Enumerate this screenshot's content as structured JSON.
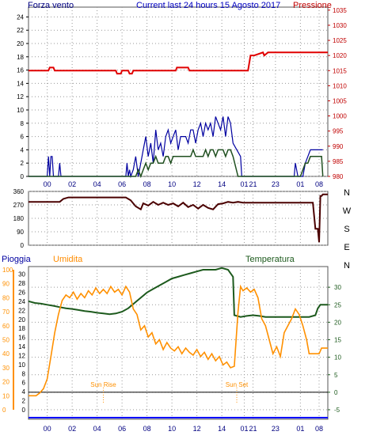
{
  "header": {
    "left": "Forza vento",
    "title": "Current last 24 hours 15 Agosto 2017",
    "right": "Pressione"
  },
  "colors": {
    "wind": "#0000a0",
    "gust": "#1f4f1f",
    "pressure": "#e00000",
    "direction": "#4a0000",
    "humidity": "#ff9000",
    "temperature": "#1d5a1d",
    "rain": "#0000ff",
    "rain_scale": "#ff9000",
    "axis_left": "#000000"
  },
  "time_ticks": [
    "00",
    "02",
    "04",
    "06",
    "08",
    "10",
    "12",
    "14",
    "01",
    "21",
    "23",
    "01",
    "08"
  ],
  "chart_data": [
    {
      "id": "wind-pressure",
      "type": "line",
      "left_axis": {
        "label": "Forza vento",
        "ticks": [
          0,
          2,
          4,
          6,
          8,
          10,
          12,
          14,
          16,
          18,
          20,
          22,
          24
        ],
        "range": [
          0,
          25
        ]
      },
      "right_axis": {
        "label": "Pressione",
        "ticks": [
          980,
          985,
          990,
          995,
          1000,
          1005,
          1010,
          1015,
          1020,
          1025,
          1030,
          1035
        ],
        "range": [
          980,
          1036
        ]
      },
      "series": [
        {
          "name": "wind",
          "axis": "left",
          "x": [
            0,
            1.5,
            1.6,
            1.7,
            1.8,
            1.9,
            2,
            2.1,
            2.4,
            2.5,
            2.6,
            2.7,
            2.8,
            3,
            7.8,
            7.9,
            8,
            8.1,
            8.2,
            8.4,
            8.6,
            8.8,
            9,
            9.2,
            9.4,
            9.6,
            9.8,
            10,
            10.2,
            10.4,
            10.6,
            10.8,
            11,
            11.2,
            11.4,
            11.6,
            11.8,
            12,
            12.2,
            12.4,
            12.6,
            12.8,
            13,
            13.2,
            13.4,
            13.6,
            13.8,
            14,
            14.2,
            14.4,
            14.6,
            14.8,
            15,
            15.2,
            15.4,
            15.6,
            15.8,
            16,
            16.2,
            16.4,
            17,
            17.1,
            17.2,
            17.3,
            17.6,
            21.2,
            21.3,
            21.4,
            21.6,
            21.8,
            22,
            22.2,
            22.4,
            22.6,
            22.8,
            23,
            23.2,
            23.5,
            23.6
          ],
          "y": [
            0,
            0,
            3,
            0,
            3,
            3,
            0,
            0,
            0,
            2,
            0,
            0,
            0,
            0,
            0,
            2,
            0,
            1,
            0,
            1,
            3,
            0,
            2,
            4,
            6,
            3,
            5,
            2,
            7,
            4,
            5,
            3,
            6,
            7,
            5,
            6,
            7,
            4,
            6,
            6,
            6,
            5,
            7,
            7,
            5,
            7,
            8,
            6,
            8,
            7,
            8,
            6,
            9,
            8,
            7,
            9,
            6,
            9,
            8,
            5,
            3,
            0,
            0,
            0,
            0,
            0,
            0,
            2,
            0,
            0,
            0,
            2,
            3,
            4,
            4,
            4,
            4,
            4,
            4
          ]
        },
        {
          "name": "gust",
          "axis": "left",
          "x": [
            0,
            7.8,
            8,
            8.2,
            8.4,
            8.6,
            8.8,
            9,
            9.2,
            9.4,
            9.6,
            9.8,
            10,
            10.2,
            10.4,
            10.6,
            10.8,
            11,
            11.2,
            11.4,
            11.6,
            11.8,
            12,
            12.2,
            12.4,
            12.6,
            12.8,
            13,
            13.2,
            13.4,
            13.6,
            13.8,
            14,
            14.2,
            14.4,
            14.6,
            14.8,
            15,
            15.2,
            15.4,
            15.6,
            15.8,
            16,
            16.2,
            16.4,
            16.8,
            21.2,
            21.4,
            21.6,
            21.8,
            22,
            22.2,
            22.4,
            22.6,
            22.8,
            23,
            23.2,
            23.5,
            23.6
          ],
          "y": [
            0,
            0,
            0,
            0,
            0,
            0,
            1,
            0,
            1,
            2,
            1,
            2,
            2,
            3,
            2,
            2,
            2,
            3,
            3,
            2,
            3,
            3,
            3,
            3,
            3,
            3,
            3,
            3,
            4,
            3,
            3,
            3,
            3,
            4,
            3,
            4,
            4,
            3,
            4,
            4,
            4,
            3,
            4,
            4,
            3,
            0,
            0,
            0,
            0,
            0,
            1,
            2,
            2,
            3,
            3,
            3,
            3,
            3,
            0
          ]
        },
        {
          "name": "pressure",
          "axis": "right",
          "x": [
            0,
            1.6,
            1.7,
            2.0,
            2.1,
            2.2,
            7.0,
            7.1,
            7.4,
            7.5,
            8.0,
            8.1,
            8.3,
            8.4,
            11.8,
            11.9,
            12.8,
            12.9,
            17.6,
            17.8,
            18.0,
            18.1,
            18.8,
            18.9,
            19.2,
            24
          ],
          "y": [
            1015,
            1015,
            1016,
            1016,
            1015,
            1015,
            1015,
            1014,
            1014,
            1015,
            1015,
            1014,
            1014,
            1015,
            1015,
            1016,
            1016,
            1015,
            1015,
            1020,
            1020,
            1020,
            1021,
            1020,
            1021,
            1021
          ]
        }
      ]
    },
    {
      "id": "wind-direction",
      "type": "line",
      "left_axis": {
        "ticks": [
          0,
          90,
          180,
          270,
          360
        ],
        "range": [
          0,
          360
        ]
      },
      "right_labels": [
        "N",
        "W",
        "S",
        "E",
        "N"
      ],
      "series": [
        {
          "name": "direction",
          "x": [
            0,
            2.5,
            2.8,
            3.2,
            7.8,
            8.2,
            8.6,
            9,
            9.2,
            9.6,
            10,
            10.4,
            10.8,
            11.2,
            11.6,
            12,
            12.4,
            12.8,
            13.2,
            13.6,
            14,
            14.4,
            14.8,
            15.2,
            15.6,
            16,
            16.4,
            16.8,
            17.2,
            17.6,
            18,
            18.4,
            18.8,
            19.2,
            19.6,
            20,
            20.4,
            20.8,
            21.2,
            21.6,
            22,
            22.4,
            22.8,
            23,
            23.2,
            23.3,
            23.4,
            23.5,
            23.6,
            24
          ],
          "y": [
            290,
            290,
            310,
            320,
            320,
            300,
            260,
            240,
            280,
            265,
            290,
            270,
            285,
            270,
            280,
            260,
            285,
            255,
            270,
            245,
            270,
            250,
            240,
            275,
            280,
            290,
            285,
            290,
            285,
            285,
            285,
            285,
            285,
            285,
            285,
            285,
            285,
            285,
            285,
            285,
            285,
            285,
            285,
            110,
            110,
            20,
            330,
            330,
            340,
            340
          ]
        }
      ]
    },
    {
      "id": "temp-humidity-rain",
      "type": "line",
      "labels": {
        "left": "Pioggia",
        "middle": "Umidita",
        "right": "Temperatura"
      },
      "rain_axis": {
        "ticks": [
          0,
          2,
          4,
          6,
          8,
          10,
          12,
          14,
          16,
          18,
          20,
          22,
          24,
          26,
          28,
          30
        ]
      },
      "humidity_axis": {
        "ticks": [
          0,
          10,
          20,
          30,
          40,
          50,
          60,
          70,
          80,
          90,
          100
        ],
        "range": [
          0,
          100
        ]
      },
      "temp_axis": {
        "ticks": [
          -5,
          0,
          5,
          10,
          15,
          20,
          25,
          30
        ],
        "range": [
          -5,
          35
        ]
      },
      "annotations": [
        {
          "text": "Sun Rise",
          "x": 6.0
        },
        {
          "text": "Sun Set",
          "x": 16.7
        }
      ],
      "series": [
        {
          "name": "temperature",
          "axis": "temp",
          "x": [
            0,
            0.5,
            1,
            1.5,
            2,
            2.5,
            3,
            3.5,
            4,
            4.5,
            5,
            5.5,
            6,
            6.5,
            7,
            7.5,
            8,
            8.5,
            9,
            9.5,
            10,
            10.5,
            11,
            11.5,
            12,
            12.5,
            13,
            13.5,
            14,
            14.5,
            15,
            15.5,
            16,
            16.2,
            16.4,
            16.5,
            17,
            17.5,
            18,
            18.5,
            19,
            19.5,
            20,
            20.5,
            21,
            21.5,
            22,
            22.5,
            23,
            23.2,
            23.4,
            24
          ],
          "y": [
            26,
            25.5,
            25.3,
            25,
            24.7,
            24.3,
            24,
            23.8,
            23.5,
            23.2,
            23,
            22.7,
            22.5,
            22.3,
            22.5,
            23,
            24,
            25.5,
            27,
            28.5,
            29.5,
            30.5,
            31.5,
            32.5,
            33,
            33.5,
            34,
            34.5,
            35,
            35,
            35,
            35.5,
            35,
            34,
            33,
            22,
            21.5,
            21.8,
            22,
            21.8,
            21.5,
            21.5,
            21.5,
            21.5,
            21.5,
            21.5,
            21.5,
            21.5,
            22,
            24,
            25,
            25
          ]
        },
        {
          "name": "humidity",
          "axis": "humidity",
          "x": [
            0,
            0.3,
            0.6,
            0.9,
            1.2,
            1.5,
            1.8,
            2.1,
            2.4,
            2.7,
            3,
            3.3,
            3.6,
            3.9,
            4.2,
            4.5,
            4.8,
            5.1,
            5.4,
            5.7,
            6,
            6.3,
            6.6,
            6.9,
            7.2,
            7.5,
            7.8,
            8.1,
            8.4,
            8.7,
            9,
            9.3,
            9.6,
            9.9,
            10.2,
            10.5,
            10.8,
            11.1,
            11.4,
            11.7,
            12,
            12.3,
            12.6,
            12.9,
            13.2,
            13.5,
            13.8,
            14.1,
            14.4,
            14.7,
            15,
            15.3,
            15.6,
            15.9,
            16.2,
            16.5,
            16.8,
            17,
            17.2,
            17.5,
            17.8,
            18.1,
            18.4,
            18.7,
            19,
            19.3,
            19.6,
            19.9,
            20.2,
            20.5,
            20.8,
            21.1,
            21.4,
            21.7,
            22,
            22.3,
            22.5,
            22.7,
            23,
            23.3,
            23.5,
            24
          ],
          "y": [
            10,
            10,
            10,
            12,
            15,
            22,
            38,
            55,
            68,
            78,
            82,
            80,
            84,
            79,
            83,
            80,
            85,
            82,
            87,
            83,
            86,
            83,
            88,
            84,
            86,
            82,
            88,
            84,
            72,
            68,
            57,
            60,
            52,
            55,
            47,
            50,
            43,
            48,
            44,
            42,
            45,
            40,
            44,
            41,
            39,
            43,
            38,
            41,
            36,
            40,
            35,
            38,
            32,
            34,
            30,
            31,
            70,
            88,
            85,
            87,
            84,
            86,
            80,
            65,
            60,
            50,
            40,
            45,
            38,
            55,
            60,
            65,
            72,
            68,
            60,
            50,
            40,
            40,
            40,
            40,
            44,
            44
          ]
        }
      ]
    }
  ]
}
